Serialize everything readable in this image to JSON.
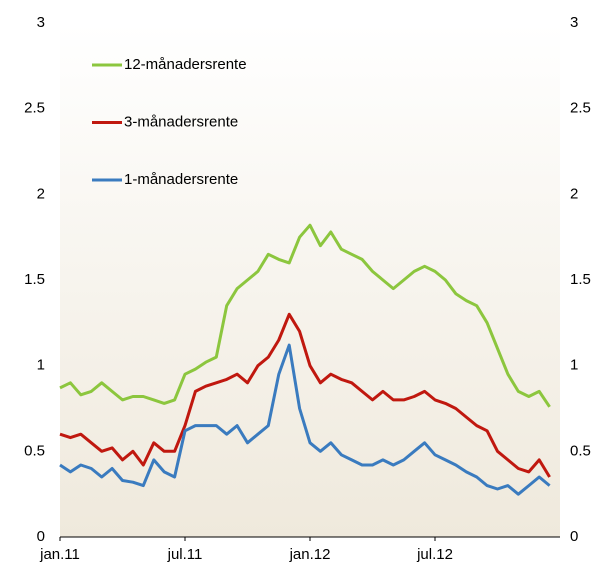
{
  "chart_data": {
    "type": "line",
    "x": [
      0,
      0.5,
      1,
      1.5,
      2,
      2.5,
      3,
      3.5,
      4,
      4.5,
      5,
      5.5,
      6,
      6.5,
      7,
      7.5,
      8,
      8.5,
      9,
      9.5,
      10,
      10.5,
      11,
      11.5,
      12,
      12.5,
      13,
      13.5,
      14,
      14.5,
      15,
      15.5,
      16,
      16.5,
      17,
      17.5,
      18,
      18.5,
      19,
      19.5,
      20,
      20.5,
      21,
      21.5,
      22,
      22.5,
      23,
      23.5
    ],
    "series": [
      {
        "name": "12-månadersrente",
        "color": "#8cc63e",
        "values": [
          0.87,
          0.9,
          0.83,
          0.85,
          0.9,
          0.85,
          0.8,
          0.82,
          0.82,
          0.8,
          0.78,
          0.8,
          0.95,
          0.98,
          1.02,
          1.05,
          1.35,
          1.45,
          1.5,
          1.55,
          1.65,
          1.62,
          1.6,
          1.75,
          1.82,
          1.7,
          1.78,
          1.68,
          1.65,
          1.62,
          1.55,
          1.5,
          1.45,
          1.5,
          1.55,
          1.58,
          1.55,
          1.5,
          1.42,
          1.38,
          1.35,
          1.25,
          1.1,
          0.95,
          0.85,
          0.82,
          0.85,
          0.76
        ]
      },
      {
        "name": "3-månadersrente",
        "color": "#c0180f",
        "values": [
          0.6,
          0.58,
          0.6,
          0.55,
          0.5,
          0.52,
          0.45,
          0.5,
          0.42,
          0.55,
          0.5,
          0.5,
          0.65,
          0.85,
          0.88,
          0.9,
          0.92,
          0.95,
          0.9,
          1.0,
          1.05,
          1.15,
          1.3,
          1.2,
          1.0,
          0.9,
          0.95,
          0.92,
          0.9,
          0.85,
          0.8,
          0.85,
          0.8,
          0.8,
          0.82,
          0.85,
          0.8,
          0.78,
          0.75,
          0.7,
          0.65,
          0.62,
          0.5,
          0.45,
          0.4,
          0.38,
          0.45,
          0.35
        ]
      },
      {
        "name": "1-månadersrente",
        "color": "#3a7bbf",
        "values": [
          0.42,
          0.38,
          0.42,
          0.4,
          0.35,
          0.4,
          0.33,
          0.32,
          0.3,
          0.45,
          0.38,
          0.35,
          0.62,
          0.65,
          0.65,
          0.65,
          0.6,
          0.65,
          0.55,
          0.6,
          0.65,
          0.95,
          1.12,
          0.75,
          0.55,
          0.5,
          0.55,
          0.48,
          0.45,
          0.42,
          0.42,
          0.45,
          0.42,
          0.45,
          0.5,
          0.55,
          0.48,
          0.45,
          0.42,
          0.38,
          0.35,
          0.3,
          0.28,
          0.3,
          0.25,
          0.3,
          0.35,
          0.3
        ]
      }
    ],
    "xlim": [
      0,
      24
    ],
    "xticks": [
      {
        "value": 0,
        "label": "jan.11"
      },
      {
        "value": 6,
        "label": "jul.11"
      },
      {
        "value": 12,
        "label": "jan.12"
      },
      {
        "value": 18,
        "label": "jul.12"
      }
    ],
    "ylim": [
      0,
      3
    ],
    "yticks": [
      0,
      0.5,
      1,
      1.5,
      2,
      2.5,
      3
    ],
    "y2lim": [
      0,
      3
    ],
    "y2ticks": [
      0,
      0.5,
      1,
      1.5,
      2,
      2.5,
      3
    ],
    "legend": "upper left",
    "grid": false
  }
}
